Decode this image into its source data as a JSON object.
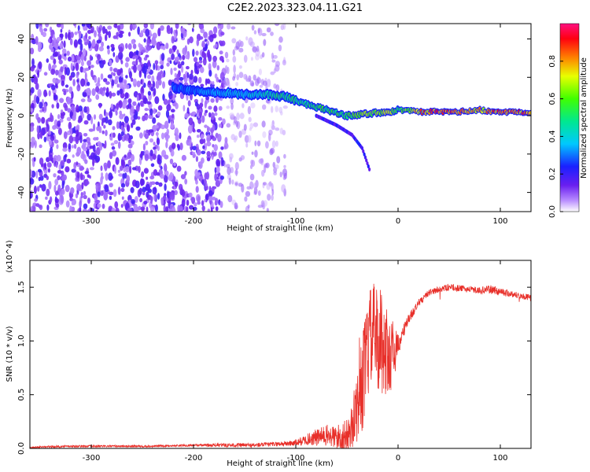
{
  "title": "C2E2.2023.323.04.11.G21",
  "colors": {
    "snr_line": "#e8302a",
    "spectro_low": "#7a2cf0",
    "spectro_mid": "#18c0ff",
    "spectro_high": "#ff2020"
  },
  "chart_data": [
    {
      "type": "heatmap",
      "xlabel": "Height of straight line (km)",
      "ylabel": "Frequency (Hz)",
      "xlim": [
        -360,
        130
      ],
      "ylim": [
        -50,
        48
      ],
      "xticks": [
        -300,
        -200,
        -100,
        0,
        100
      ],
      "yticks": [
        -40,
        -20,
        0,
        20,
        40
      ],
      "colorbar": {
        "label": "Normalized spectral amplitude",
        "range": [
          0.0,
          1.0
        ],
        "ticks": [
          "0.0",
          "0.2",
          "0.4",
          "0.6",
          "0.8"
        ],
        "colormap": "rainbow"
      },
      "ridge": {
        "x": [
          -220,
          -200,
          -170,
          -150,
          -130,
          -110,
          -90,
          -70,
          -50,
          -30,
          -10,
          0,
          20,
          40,
          60,
          80,
          90,
          100,
          120,
          130
        ],
        "freq": [
          15,
          13,
          12,
          11,
          11,
          10,
          6,
          3,
          0,
          1,
          2,
          3,
          2,
          2,
          2,
          3,
          2,
          2,
          2,
          2
        ],
        "amplitude": [
          0.3,
          0.35,
          0.4,
          0.45,
          0.5,
          0.55,
          0.55,
          0.6,
          0.65,
          0.7,
          0.75,
          0.6,
          0.9,
          0.95,
          0.95,
          0.85,
          0.9,
          0.95,
          0.95,
          0.9
        ]
      },
      "branch": {
        "x": [
          -80,
          -60,
          -45,
          -35,
          -28
        ],
        "freq": [
          0,
          -5,
          -10,
          -17,
          -28
        ]
      },
      "noise_regions": [
        {
          "x": [
            -360,
            -170
          ],
          "density": "high"
        },
        {
          "x": [
            -170,
            -110
          ],
          "density": "low"
        }
      ]
    },
    {
      "type": "line",
      "xlabel": "Height of straight line (km)",
      "ylabel": "SNR (10 * v/v)",
      "y_multiplier": "(x10^4)",
      "xlim": [
        -360,
        130
      ],
      "ylim": [
        0,
        1.75
      ],
      "xticks": [
        -300,
        -200,
        -100,
        0,
        100
      ],
      "yticks": [
        "0.0",
        "0.5",
        "1.0",
        "1.5"
      ],
      "series": [
        {
          "x": [
            -360,
            -320,
            -280,
            -240,
            -200,
            -160,
            -140,
            -120,
            -100,
            -90,
            -80,
            -70,
            -60,
            -50,
            -45,
            -40,
            -35,
            -30,
            -25,
            -20,
            -15,
            -12,
            -8,
            -5,
            0,
            10,
            20,
            30,
            40,
            50,
            60,
            70,
            80,
            90,
            100,
            110,
            120,
            130
          ],
          "values": [
            0.01,
            0.02,
            0.02,
            0.02,
            0.03,
            0.03,
            0.03,
            0.04,
            0.05,
            0.08,
            0.1,
            0.12,
            0.1,
            0.12,
            0.2,
            0.4,
            0.6,
            0.9,
            1.1,
            1.0,
            1.0,
            0.9,
            0.85,
            0.9,
            0.95,
            1.2,
            1.35,
            1.45,
            1.48,
            1.5,
            1.49,
            1.48,
            1.47,
            1.48,
            1.46,
            1.44,
            1.42,
            1.4
          ],
          "noise_amplitude": [
            0.01,
            0.01,
            0.01,
            0.01,
            0.01,
            0.02,
            0.02,
            0.02,
            0.03,
            0.05,
            0.08,
            0.1,
            0.12,
            0.15,
            0.2,
            0.35,
            0.45,
            0.5,
            0.45,
            0.5,
            0.5,
            0.45,
            0.35,
            0.3,
            0.1,
            0.05,
            0.04,
            0.03,
            0.03,
            0.03,
            0.03,
            0.03,
            0.03,
            0.04,
            0.04,
            0.03,
            0.03,
            0.03
          ]
        }
      ]
    }
  ]
}
